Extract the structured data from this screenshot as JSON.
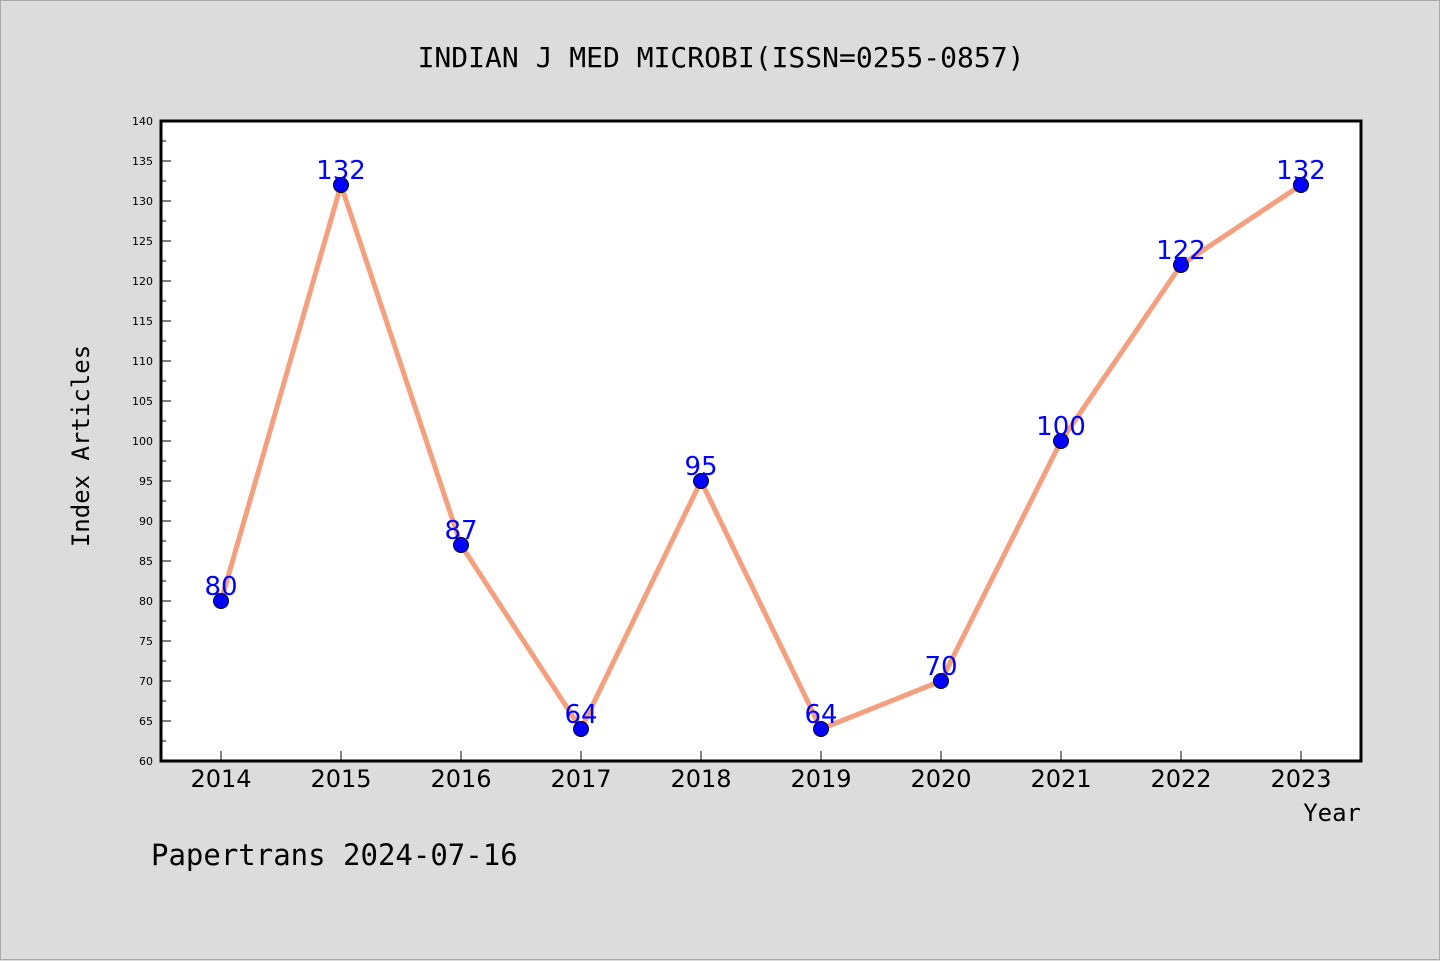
{
  "chart_data": {
    "type": "line",
    "title": "INDIAN J MED MICROBI(ISSN=0255-0857)",
    "xlabel": "Year",
    "ylabel": "Index Articles",
    "footer": "Papertrans 2024-07-16",
    "categories": [
      "2014",
      "2015",
      "2016",
      "2017",
      "2018",
      "2019",
      "2020",
      "2021",
      "2022",
      "2023"
    ],
    "values": [
      80,
      132,
      87,
      64,
      95,
      64,
      70,
      100,
      122,
      132
    ],
    "ylim": [
      60,
      140
    ],
    "ytick_step": 5,
    "grid": false,
    "legend": "none",
    "line_color": "#f4a07e",
    "marker_color": "#0000ff",
    "label_color": "#0000ff"
  }
}
